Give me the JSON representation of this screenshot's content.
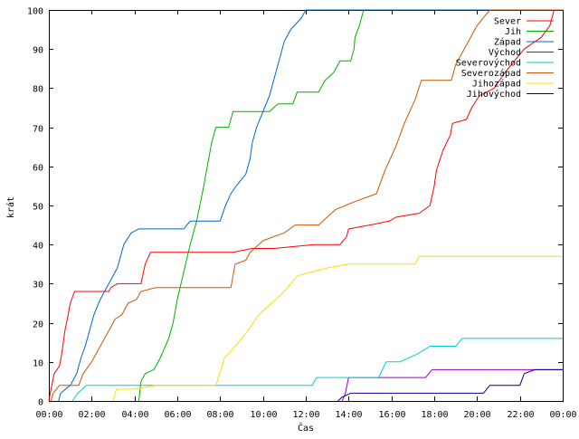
{
  "chart_data": {
    "type": "line",
    "xlabel": "Čas",
    "ylabel": "krát",
    "xlim": [
      0,
      24
    ],
    "ylim": [
      0,
      100
    ],
    "xticks": [
      "00:00",
      "02:00",
      "04:00",
      "06:00",
      "08:00",
      "10:00",
      "12:00",
      "14:00",
      "16:00",
      "18:00",
      "20:00",
      "22:00",
      "00:00"
    ],
    "yticks": [
      0,
      10,
      20,
      30,
      40,
      50,
      60,
      70,
      80,
      90,
      100
    ],
    "grid": false,
    "legend_position": "top-right",
    "series": [
      {
        "name": "Sever",
        "color": "#ff0000",
        "points": [
          [
            0,
            0
          ],
          [
            0.1,
            3
          ],
          [
            0.25,
            7
          ],
          [
            0.5,
            9
          ],
          [
            0.6,
            12
          ],
          [
            0.75,
            18
          ],
          [
            0.9,
            22
          ],
          [
            1.0,
            25
          ],
          [
            1.2,
            28
          ],
          [
            2.8,
            28
          ],
          [
            2.9,
            29
          ],
          [
            3.2,
            30
          ],
          [
            4.3,
            30
          ],
          [
            4.5,
            35
          ],
          [
            4.75,
            38
          ],
          [
            8.6,
            38
          ],
          [
            9.5,
            39
          ],
          [
            10.5,
            39
          ],
          [
            12.4,
            40
          ],
          [
            13.6,
            40
          ],
          [
            13.9,
            42
          ],
          [
            14.0,
            44
          ],
          [
            15.0,
            45
          ],
          [
            15.9,
            46
          ],
          [
            16.2,
            47
          ],
          [
            17.3,
            48
          ],
          [
            17.8,
            50
          ],
          [
            18.0,
            55
          ],
          [
            18.1,
            59
          ],
          [
            18.4,
            64
          ],
          [
            18.75,
            68
          ],
          [
            18.85,
            71
          ],
          [
            19.5,
            72
          ],
          [
            19.75,
            75
          ],
          [
            20.1,
            78
          ],
          [
            20.8,
            80
          ],
          [
            21.3,
            84
          ],
          [
            21.75,
            87
          ],
          [
            22.2,
            90
          ],
          [
            23.0,
            93
          ],
          [
            23.4,
            96
          ],
          [
            23.6,
            100
          ],
          [
            24,
            100
          ]
        ]
      },
      {
        "name": "Jih",
        "color": "#00b000",
        "points": [
          [
            4.2,
            0
          ],
          [
            4.3,
            5
          ],
          [
            4.5,
            7
          ],
          [
            4.9,
            8
          ],
          [
            5.2,
            11
          ],
          [
            5.6,
            16
          ],
          [
            5.8,
            20
          ],
          [
            6.0,
            26
          ],
          [
            6.3,
            33
          ],
          [
            6.6,
            40
          ],
          [
            6.9,
            46
          ],
          [
            7.2,
            54
          ],
          [
            7.4,
            60
          ],
          [
            7.6,
            66
          ],
          [
            7.8,
            70
          ],
          [
            8.4,
            70
          ],
          [
            8.6,
            74
          ],
          [
            10.3,
            74
          ],
          [
            10.5,
            75
          ],
          [
            10.7,
            76
          ],
          [
            11.4,
            76
          ],
          [
            11.6,
            79
          ],
          [
            12.6,
            79
          ],
          [
            12.9,
            82
          ],
          [
            13.3,
            84
          ],
          [
            13.6,
            87
          ],
          [
            14.1,
            87
          ],
          [
            14.25,
            90
          ],
          [
            14.3,
            93
          ],
          [
            14.5,
            96
          ],
          [
            14.7,
            100
          ],
          [
            24,
            100
          ]
        ]
      },
      {
        "name": "Západ",
        "color": "#0066cc",
        "points": [
          [
            0.45,
            0
          ],
          [
            0.55,
            2
          ],
          [
            1.0,
            4
          ],
          [
            1.3,
            7
          ],
          [
            1.5,
            11
          ],
          [
            1.7,
            14
          ],
          [
            1.9,
            18
          ],
          [
            2.1,
            22
          ],
          [
            2.4,
            26
          ],
          [
            2.8,
            30
          ],
          [
            3.2,
            34
          ],
          [
            3.5,
            40
          ],
          [
            3.85,
            43
          ],
          [
            4.2,
            44
          ],
          [
            6.3,
            44
          ],
          [
            6.6,
            46
          ],
          [
            8.0,
            46
          ],
          [
            8.25,
            50
          ],
          [
            8.5,
            53
          ],
          [
            8.75,
            55
          ],
          [
            9.2,
            58
          ],
          [
            9.4,
            62
          ],
          [
            9.5,
            66
          ],
          [
            9.7,
            70
          ],
          [
            10.0,
            74
          ],
          [
            10.3,
            78
          ],
          [
            10.55,
            83
          ],
          [
            10.8,
            88
          ],
          [
            11.0,
            92
          ],
          [
            11.3,
            95
          ],
          [
            11.8,
            98
          ],
          [
            12.0,
            100
          ],
          [
            24,
            100
          ]
        ]
      },
      {
        "name": "Východ",
        "color": "#9900cc",
        "points": [
          [
            13.7,
            0
          ],
          [
            13.85,
            2
          ],
          [
            14.0,
            6
          ],
          [
            17.6,
            6
          ],
          [
            17.9,
            8
          ],
          [
            24,
            8
          ]
        ]
      },
      {
        "name": "Severovýchod",
        "color": "#00cccc",
        "points": [
          [
            1.1,
            0
          ],
          [
            1.35,
            2
          ],
          [
            1.75,
            4
          ],
          [
            12.3,
            4
          ],
          [
            12.5,
            6
          ],
          [
            15.4,
            6
          ],
          [
            15.75,
            10
          ],
          [
            16.4,
            10
          ],
          [
            17.2,
            12
          ],
          [
            17.8,
            14
          ],
          [
            19.0,
            14
          ],
          [
            19.3,
            16
          ],
          [
            24,
            16
          ]
        ]
      },
      {
        "name": "Severozápad",
        "color": "#cc5500",
        "points": [
          [
            0.1,
            0
          ],
          [
            0.2,
            2
          ],
          [
            0.5,
            4
          ],
          [
            1.4,
            4
          ],
          [
            1.6,
            7
          ],
          [
            2.0,
            10
          ],
          [
            2.4,
            14
          ],
          [
            2.8,
            18
          ],
          [
            3.1,
            21
          ],
          [
            3.4,
            22
          ],
          [
            3.7,
            25
          ],
          [
            4.1,
            26
          ],
          [
            4.3,
            28
          ],
          [
            5.0,
            29
          ],
          [
            8.5,
            29
          ],
          [
            8.7,
            35
          ],
          [
            9.2,
            36
          ],
          [
            9.4,
            38
          ],
          [
            10.0,
            41
          ],
          [
            11.0,
            43
          ],
          [
            11.5,
            45
          ],
          [
            12.6,
            45
          ],
          [
            13.4,
            49
          ],
          [
            14.3,
            51
          ],
          [
            15.3,
            53
          ],
          [
            15.7,
            59
          ],
          [
            16.2,
            65
          ],
          [
            16.6,
            71
          ],
          [
            17.1,
            77
          ],
          [
            17.4,
            82
          ],
          [
            18.8,
            82
          ],
          [
            19.0,
            86
          ],
          [
            19.4,
            90
          ],
          [
            19.7,
            93
          ],
          [
            20.0,
            96
          ],
          [
            20.3,
            98
          ],
          [
            20.6,
            100
          ],
          [
            24,
            100
          ]
        ]
      },
      {
        "name": "Jihozápad",
        "color": "#ffdd00",
        "points": [
          [
            3.0,
            0
          ],
          [
            3.15,
            3
          ],
          [
            4.0,
            3
          ],
          [
            5.0,
            4
          ],
          [
            7.8,
            4
          ],
          [
            8.2,
            11
          ],
          [
            8.7,
            14
          ],
          [
            9.3,
            18
          ],
          [
            9.8,
            22
          ],
          [
            10.4,
            25
          ],
          [
            11.0,
            28
          ],
          [
            11.6,
            32
          ],
          [
            12.3,
            33
          ],
          [
            13.0,
            34
          ],
          [
            14.0,
            35
          ],
          [
            17.1,
            35
          ],
          [
            17.3,
            37
          ],
          [
            24,
            37
          ]
        ]
      },
      {
        "name": "Jihovýchod",
        "color": "#000099",
        "points": [
          [
            13.5,
            0
          ],
          [
            13.7,
            1
          ],
          [
            14.1,
            2
          ],
          [
            20.3,
            2
          ],
          [
            20.6,
            4
          ],
          [
            22.0,
            4
          ],
          [
            22.2,
            7
          ],
          [
            22.7,
            8
          ],
          [
            24,
            8
          ]
        ]
      }
    ]
  }
}
